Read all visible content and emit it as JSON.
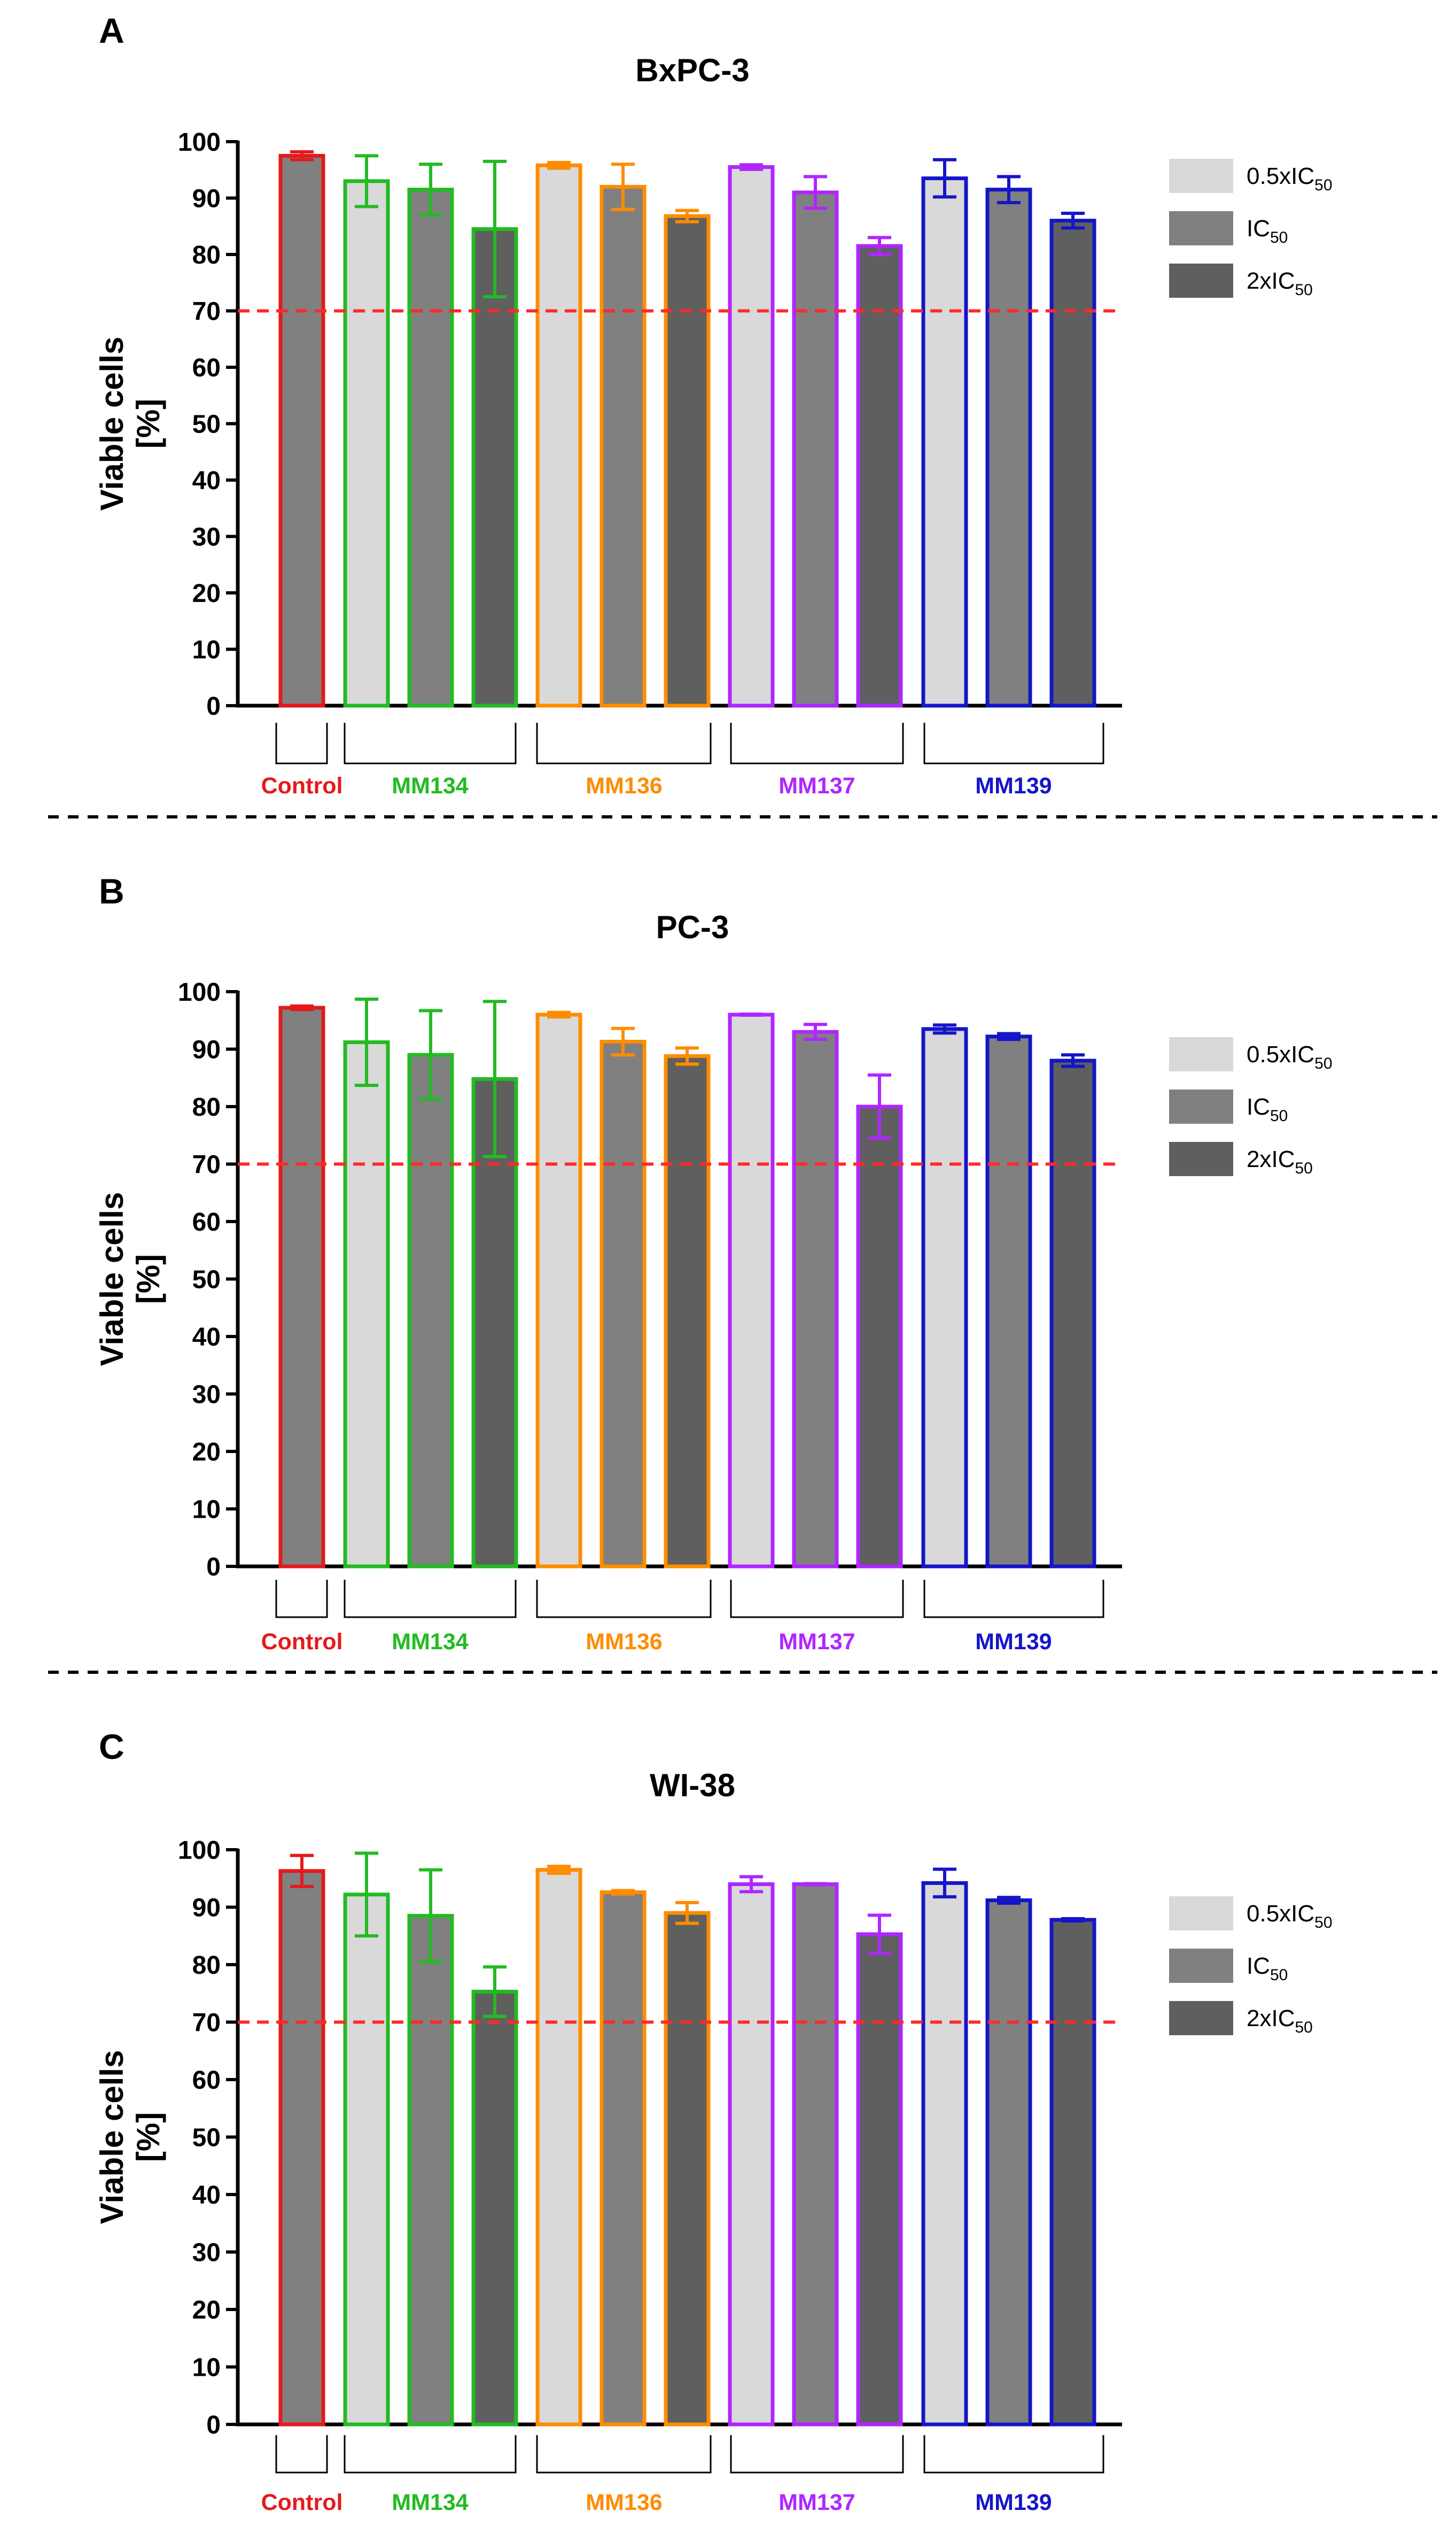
{
  "figure": {
    "separator_color": "#000000",
    "threshold_color": "#ff2a2a",
    "shade_colors": {
      "0.5xIC50": "#d9d9d9",
      "IC50": "#808080",
      "2xIC50": "#5f5f5f"
    },
    "group_colors": {
      "Control": "#e41a1c",
      "MM134": "#22bb22",
      "MM136": "#ff8c00",
      "MM137": "#b026ff",
      "MM139": "#1515c8"
    }
  },
  "chart_data": [
    {
      "type": "bar",
      "panel": "A",
      "title": "BxPC-3",
      "ylabel": "Viable cells\n[%]",
      "ylim": [
        0,
        100
      ],
      "yticks": [
        0,
        10,
        20,
        30,
        40,
        50,
        60,
        70,
        80,
        90,
        100
      ],
      "threshold": 70,
      "legend": [
        {
          "label": "0.5xIC",
          "sub": "50"
        },
        {
          "label": "IC",
          "sub": "50"
        },
        {
          "label": "2xIC",
          "sub": "50"
        }
      ],
      "groups": [
        {
          "name": "Control",
          "bars": [
            {
              "dose": "IC50",
              "value": 97.5,
              "err": 0.7
            }
          ]
        },
        {
          "name": "MM134",
          "bars": [
            {
              "dose": "0.5xIC50",
              "value": 93,
              "err": 4.5
            },
            {
              "dose": "IC50",
              "value": 91.5,
              "err": 4.5
            },
            {
              "dose": "2xIC50",
              "value": 84.5,
              "err": 12
            }
          ]
        },
        {
          "name": "MM136",
          "bars": [
            {
              "dose": "0.5xIC50",
              "value": 95.8,
              "err": 0.5
            },
            {
              "dose": "IC50",
              "value": 92,
              "err": 4
            },
            {
              "dose": "2xIC50",
              "value": 86.8,
              "err": 1
            }
          ]
        },
        {
          "name": "MM137",
          "bars": [
            {
              "dose": "0.5xIC50",
              "value": 95.5,
              "err": 0.4
            },
            {
              "dose": "IC50",
              "value": 91,
              "err": 2.8
            },
            {
              "dose": "2xIC50",
              "value": 81.5,
              "err": 1.5
            }
          ]
        },
        {
          "name": "MM139",
          "bars": [
            {
              "dose": "0.5xIC50",
              "value": 93.5,
              "err": 3.3
            },
            {
              "dose": "IC50",
              "value": 91.5,
              "err": 2.3
            },
            {
              "dose": "2xIC50",
              "value": 86,
              "err": 1.3
            }
          ]
        }
      ]
    },
    {
      "type": "bar",
      "panel": "B",
      "title": "PC-3",
      "ylabel": "Viable cells\n[%]",
      "ylim": [
        0,
        100
      ],
      "yticks": [
        0,
        10,
        20,
        30,
        40,
        50,
        60,
        70,
        80,
        90,
        100
      ],
      "threshold": 70,
      "legend": [
        {
          "label": "0.5xIC",
          "sub": "50"
        },
        {
          "label": "IC",
          "sub": "50"
        },
        {
          "label": "2xIC",
          "sub": "50"
        }
      ],
      "groups": [
        {
          "name": "Control",
          "bars": [
            {
              "dose": "IC50",
              "value": 97.2,
              "err": 0.3
            }
          ]
        },
        {
          "name": "MM134",
          "bars": [
            {
              "dose": "0.5xIC50",
              "value": 91.2,
              "err": 7.5
            },
            {
              "dose": "IC50",
              "value": 89,
              "err": 7.7
            },
            {
              "dose": "2xIC50",
              "value": 84.8,
              "err": 13.5
            }
          ]
        },
        {
          "name": "MM136",
          "bars": [
            {
              "dose": "0.5xIC50",
              "value": 96,
              "err": 0.4
            },
            {
              "dose": "IC50",
              "value": 91.3,
              "err": 2.3
            },
            {
              "dose": "2xIC50",
              "value": 88.8,
              "err": 1.4
            }
          ]
        },
        {
          "name": "MM137",
          "bars": [
            {
              "dose": "0.5xIC50",
              "value": 96,
              "err": 0
            },
            {
              "dose": "IC50",
              "value": 93,
              "err": 1.3
            },
            {
              "dose": "2xIC50",
              "value": 80,
              "err": 5.5
            }
          ]
        },
        {
          "name": "MM139",
          "bars": [
            {
              "dose": "0.5xIC50",
              "value": 93.5,
              "err": 0.7
            },
            {
              "dose": "IC50",
              "value": 92.2,
              "err": 0.5
            },
            {
              "dose": "2xIC50",
              "value": 88,
              "err": 1
            }
          ]
        }
      ]
    },
    {
      "type": "bar",
      "panel": "C",
      "title": "WI-38",
      "ylabel": "Viable cells\n[%]",
      "ylim": [
        0,
        100
      ],
      "yticks": [
        0,
        10,
        20,
        30,
        40,
        50,
        60,
        70,
        80,
        90,
        100
      ],
      "threshold": 70,
      "legend": [
        {
          "label": "0.5xIC",
          "sub": "50"
        },
        {
          "label": "IC",
          "sub": "50"
        },
        {
          "label": "2xIC",
          "sub": "50"
        }
      ],
      "groups": [
        {
          "name": "Control",
          "bars": [
            {
              "dose": "IC50",
              "value": 96.3,
              "err": 2.7
            }
          ]
        },
        {
          "name": "MM134",
          "bars": [
            {
              "dose": "0.5xIC50",
              "value": 92.2,
              "err": 7.2
            },
            {
              "dose": "IC50",
              "value": 88.5,
              "err": 8
            },
            {
              "dose": "2xIC50",
              "value": 75.3,
              "err": 4.3
            }
          ]
        },
        {
          "name": "MM136",
          "bars": [
            {
              "dose": "0.5xIC50",
              "value": 96.5,
              "err": 0.6
            },
            {
              "dose": "IC50",
              "value": 92.6,
              "err": 0.3
            },
            {
              "dose": "2xIC50",
              "value": 89,
              "err": 1.8
            }
          ]
        },
        {
          "name": "MM137",
          "bars": [
            {
              "dose": "0.5xIC50",
              "value": 94,
              "err": 1.3
            },
            {
              "dose": "IC50",
              "value": 94,
              "err": 0
            },
            {
              "dose": "2xIC50",
              "value": 85.3,
              "err": 3.3
            }
          ]
        },
        {
          "name": "MM139",
          "bars": [
            {
              "dose": "0.5xIC50",
              "value": 94.2,
              "err": 2.4
            },
            {
              "dose": "IC50",
              "value": 91.2,
              "err": 0.5
            },
            {
              "dose": "2xIC50",
              "value": 87.8,
              "err": 0.2
            }
          ]
        }
      ]
    }
  ]
}
